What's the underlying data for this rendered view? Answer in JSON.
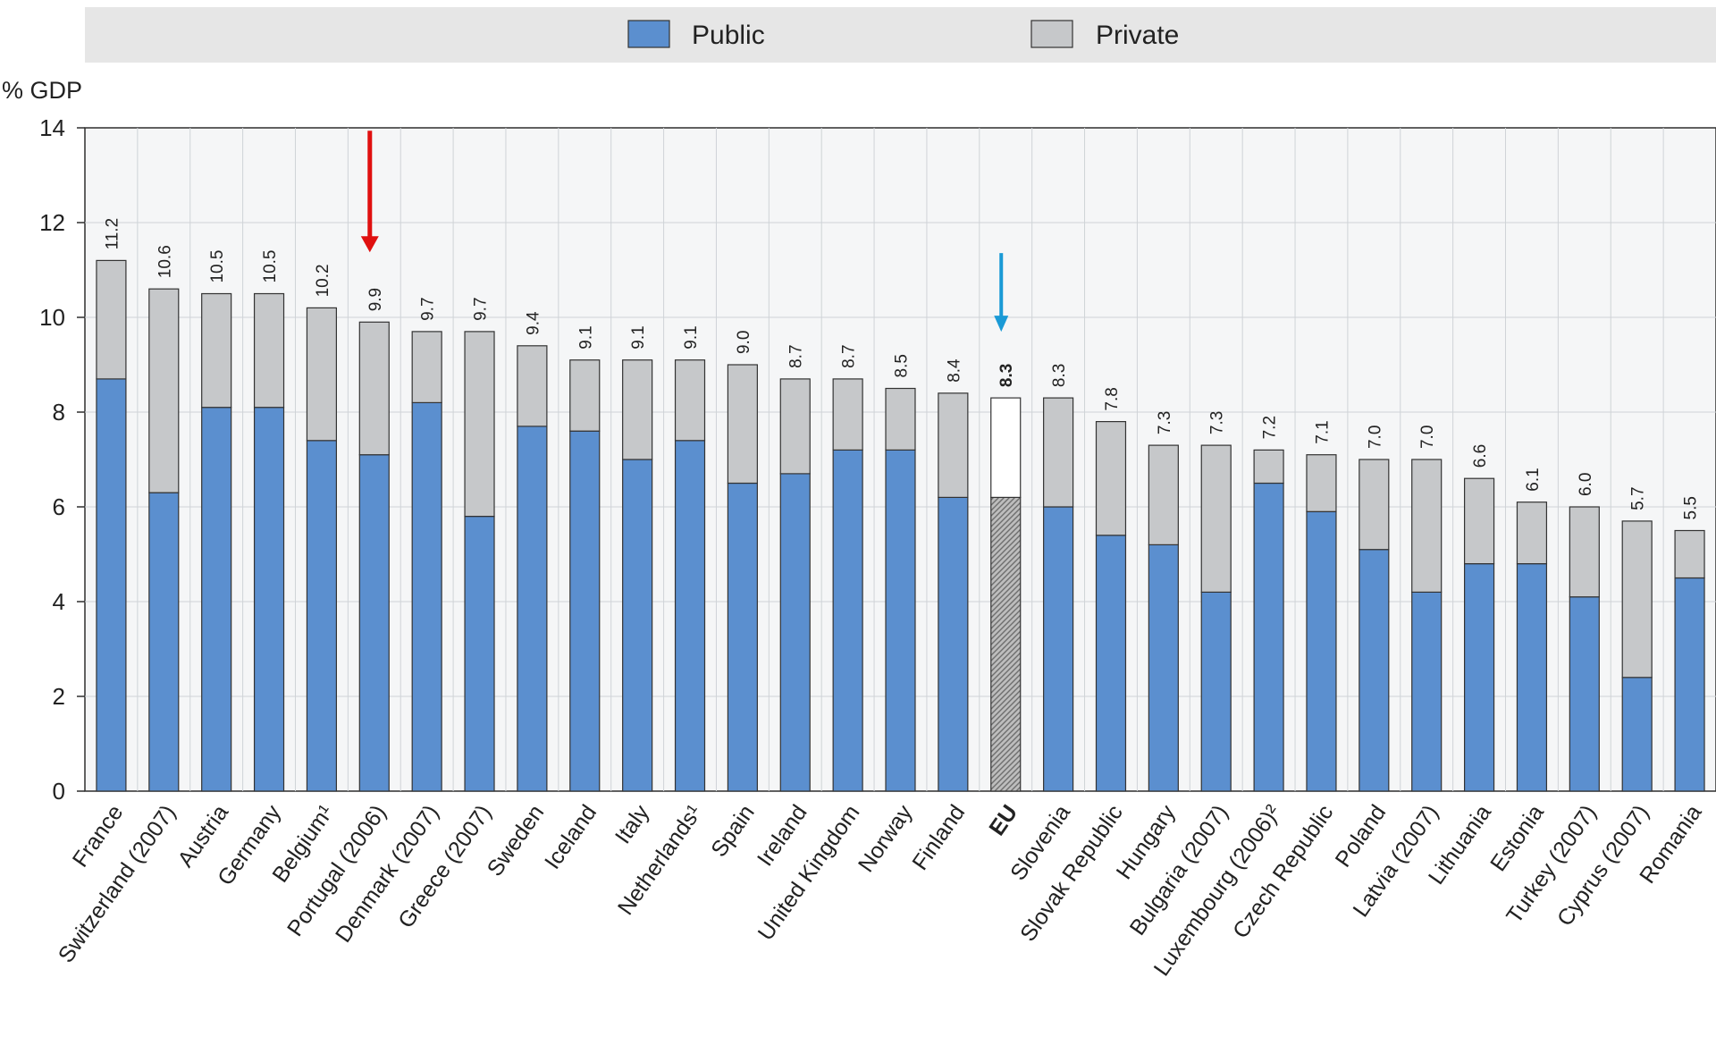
{
  "chart_data": {
    "type": "bar",
    "stacked": true,
    "ylabel": "% GDP",
    "ylim": [
      0,
      14
    ],
    "yticks": [
      0,
      2,
      4,
      6,
      8,
      10,
      12,
      14
    ],
    "grid": true,
    "legend_position": "top",
    "highlight_category": "EU",
    "categories": [
      "France",
      "Switzerland (2007)",
      "Austria",
      "Germany",
      "Belgium¹",
      "Portugal (2006)",
      "Denmark (2007)",
      "Greece (2007)",
      "Sweden",
      "Iceland",
      "Italy",
      "Netherlands¹",
      "Spain",
      "Ireland",
      "United Kingdom",
      "Norway",
      "Finland",
      "EU",
      "Slovenia",
      "Slovak Republic",
      "Hungary",
      "Bulgaria (2007)",
      "Luxembourg (2006)²",
      "Czech Republic",
      "Poland",
      "Latvia (2007)",
      "Lithuania",
      "Estonia",
      "Turkey (2007)",
      "Cyprus (2007)",
      "Romania"
    ],
    "totals_labels": [
      "11.2",
      "10.6",
      "10.5",
      "10.5",
      "10.2",
      "9.9",
      "9.7",
      "9.7",
      "9.4",
      "9.1",
      "9.1",
      "9.1",
      "9.0",
      "8.7",
      "8.7",
      "8.5",
      "8.4",
      "8.3",
      "8.3",
      "7.8",
      "7.3",
      "7.3",
      "7.2",
      "7.1",
      "7.0",
      "7.0",
      "6.6",
      "6.1",
      "6.0",
      "5.7",
      "5.5"
    ],
    "series": [
      {
        "name": "Public",
        "color": "#5b8fcf",
        "values": [
          8.7,
          6.3,
          8.1,
          8.1,
          7.4,
          7.1,
          8.2,
          5.8,
          7.7,
          7.6,
          7.0,
          7.4,
          6.5,
          6.7,
          7.2,
          7.2,
          6.2,
          6.2,
          6.0,
          5.4,
          5.2,
          4.2,
          6.5,
          5.9,
          5.1,
          4.2,
          4.8,
          4.8,
          4.1,
          2.4,
          4.5
        ]
      },
      {
        "name": "Private",
        "color": "#c6c8ca",
        "values": [
          2.5,
          4.3,
          2.4,
          2.4,
          2.8,
          2.8,
          1.5,
          3.9,
          1.7,
          1.5,
          2.1,
          1.7,
          2.5,
          2.0,
          1.5,
          1.3,
          2.2,
          2.1,
          2.3,
          2.4,
          2.1,
          3.1,
          0.7,
          1.2,
          1.9,
          2.8,
          1.8,
          1.3,
          1.9,
          3.3,
          1.0
        ]
      }
    ],
    "eu_colors": {
      "public": "#b5b5b5",
      "private": "#ffffff"
    },
    "annotations": [
      {
        "type": "arrow",
        "category": "Portugal (2006)",
        "color": "#e01010"
      },
      {
        "type": "arrow",
        "category": "EU",
        "color": "#1a9ad6"
      }
    ]
  }
}
